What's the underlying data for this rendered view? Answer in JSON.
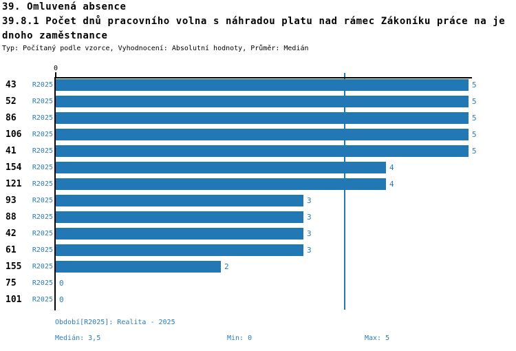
{
  "header": {
    "section_title": "39. Omluvená absence",
    "indicator_title_lines": [
      "39.8.1 Počet dnů pracovního volna s náhradou platu nad rámec Zákoníku práce na je",
      "dnoho zaměstnance"
    ],
    "meta": "Typ: Počítaný podle vzorce, Vyhodnocení: Absolutní hodnoty, Průměr: Medián"
  },
  "chart_data": {
    "type": "bar",
    "orientation": "horizontal",
    "title": "39.8.1 Počet dnů pracovního volna s náhradou platu nad rámec Zákoníku práce na jednoho zaměstnance",
    "categories": [
      "43",
      "52",
      "86",
      "106",
      "41",
      "154",
      "121",
      "93",
      "88",
      "42",
      "61",
      "155",
      "75",
      "101"
    ],
    "series": [
      {
        "name": "R2025",
        "values": [
          5,
          5,
          5,
          5,
          5,
          4,
          4,
          3,
          3,
          3,
          3,
          2,
          0,
          0
        ]
      }
    ],
    "xlim": [
      0,
      5
    ],
    "x_ticks": [
      {
        "value": 0,
        "label": "0"
      }
    ],
    "median_value": 3.5,
    "grid": false,
    "legend_position": "none",
    "value_labels_shown": true
  },
  "footer": {
    "period": "Období[R2025]: Realita - 2025",
    "median": "Medián: 3,5",
    "min": "Min: 0",
    "max": "Max: 5"
  },
  "colors": {
    "bar": "#2277B5",
    "blue_text": "#2B7CBB",
    "median_line": "#2277B5",
    "axis": "#000000",
    "background": "#FFFFFF"
  }
}
